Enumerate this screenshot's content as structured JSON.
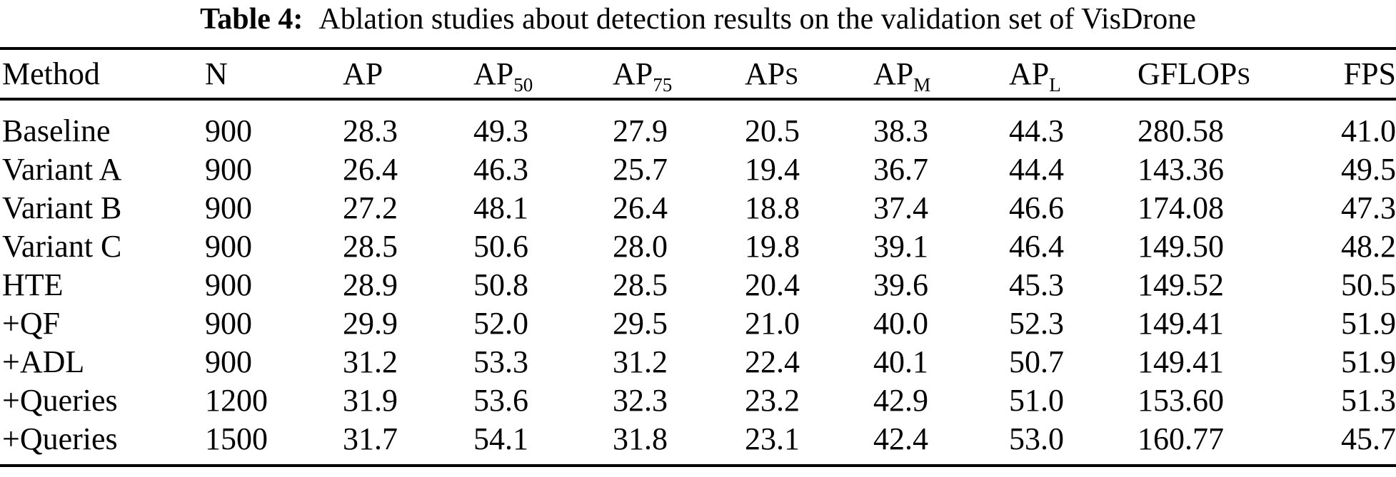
{
  "caption": {
    "label": "Table 4:",
    "text": "Ablation studies about detection results on the validation set of VisDrone"
  },
  "table": {
    "columns": [
      {
        "name": "method",
        "label": "Method"
      },
      {
        "name": "n",
        "label": "N"
      },
      {
        "name": "ap",
        "label": "AP"
      },
      {
        "name": "ap50",
        "label": "AP",
        "sub": "50"
      },
      {
        "name": "ap75",
        "label": "AP",
        "sub": "75"
      },
      {
        "name": "aps",
        "label": "AP",
        "smallcap": "S"
      },
      {
        "name": "apm",
        "label": "AP",
        "sub": "M"
      },
      {
        "name": "apl",
        "label": "AP",
        "sub": "L"
      },
      {
        "name": "gflops",
        "label": "GFLOP",
        "smallcap": "S"
      },
      {
        "name": "fps",
        "label": "FPS"
      }
    ],
    "rows": [
      {
        "cells": [
          "Baseline",
          "900",
          "28.3",
          "49.3",
          "27.9",
          "20.5",
          "38.3",
          "44.3",
          "280.58",
          "41.0"
        ],
        "bold": []
      },
      {
        "cells": [
          "Variant A",
          "900",
          "26.4",
          "46.3",
          "25.7",
          "19.4",
          "36.7",
          "44.4",
          "143.36",
          "49.5"
        ],
        "bold": [
          8
        ]
      },
      {
        "cells": [
          "Variant B",
          "900",
          "27.2",
          "48.1",
          "26.4",
          "18.8",
          "37.4",
          "46.6",
          "174.08",
          "47.3"
        ],
        "bold": []
      },
      {
        "cells": [
          "Variant C",
          "900",
          "28.5",
          "50.6",
          "28.0",
          "19.8",
          "39.1",
          "46.4",
          "149.50",
          "48.2"
        ],
        "bold": []
      },
      {
        "cells": [
          "HTE",
          "900",
          "28.9",
          "50.8",
          "28.5",
          "20.4",
          "39.6",
          "45.3",
          "149.52",
          "50.5"
        ],
        "bold": []
      },
      {
        "cells": [
          "+QF",
          "900",
          "29.9",
          "52.0",
          "29.5",
          "21.0",
          "40.0",
          "52.3",
          "149.41",
          "51.9"
        ],
        "bold": []
      },
      {
        "cells": [
          "+ADL",
          "900",
          "31.2",
          "53.3",
          "31.2",
          "22.4",
          "40.1",
          "50.7",
          "149.41",
          "51.9"
        ],
        "bold": [
          9
        ]
      },
      {
        "cells": [
          "+Queries",
          "1200",
          "31.9",
          "53.6",
          "32.3",
          "23.2",
          "42.9",
          "51.0",
          "153.60",
          "51.3"
        ],
        "bold": [
          2,
          3,
          4,
          5,
          6
        ]
      },
      {
        "cells": [
          "+Queries",
          "1500",
          "31.7",
          "54.1",
          "31.8",
          "23.1",
          "42.4",
          "53.0",
          "160.77",
          "45.7"
        ],
        "bold": [
          7
        ]
      }
    ]
  },
  "colors": {
    "text": "#000000",
    "background": "#ffffff",
    "rule": "#000000"
  }
}
